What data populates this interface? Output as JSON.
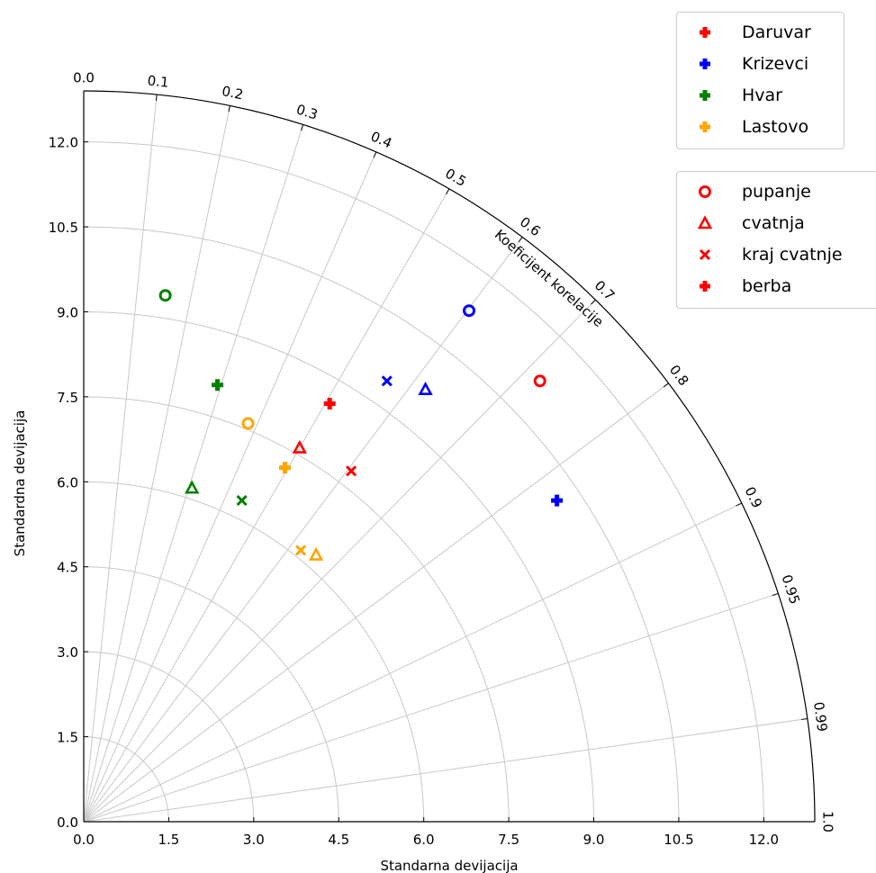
{
  "chart_data": {
    "type": "taylor_diagram",
    "xlabel": "Standarna devijacija",
    "ylabel": "Standardna devijacija",
    "arc_label": "Koeficijent korelacije",
    "std_max": 12.9,
    "std_ticks": [
      "0.0",
      "1.5",
      "3.0",
      "4.5",
      "6.0",
      "7.5",
      "9.0",
      "10.5",
      "12.0"
    ],
    "corr_ticks": [
      "0.0",
      "0.1",
      "0.2",
      "0.3",
      "0.4",
      "0.5",
      "0.6",
      "0.7",
      "0.8",
      "0.9",
      "0.95",
      "0.99",
      "1.0"
    ],
    "grid": true,
    "stations": [
      {
        "name": "Daruvar",
        "color": "#ff0000"
      },
      {
        "name": "Krizevci",
        "color": "#0000ff"
      },
      {
        "name": "Hvar",
        "color": "#008000"
      },
      {
        "name": "Lastovo",
        "color": "#ffa500"
      }
    ],
    "phases": [
      {
        "name": "pupanje",
        "marker": "circle"
      },
      {
        "name": "cvatnja",
        "marker": "triangle"
      },
      {
        "name": "kraj cvatnje",
        "marker": "x"
      },
      {
        "name": "berba",
        "marker": "plus"
      }
    ],
    "points": [
      {
        "station": "Daruvar",
        "phase": "pupanje",
        "x": 8.05,
        "y": 7.78
      },
      {
        "station": "Daruvar",
        "phase": "cvatnja",
        "x": 3.81,
        "y": 6.6
      },
      {
        "station": "Daruvar",
        "phase": "kraj cvatnje",
        "x": 4.72,
        "y": 6.19
      },
      {
        "station": "Daruvar",
        "phase": "berba",
        "x": 4.34,
        "y": 7.38
      },
      {
        "station": "Krizevci",
        "phase": "pupanje",
        "x": 6.8,
        "y": 9.02
      },
      {
        "station": "Krizevci",
        "phase": "cvatnja",
        "x": 6.03,
        "y": 7.63
      },
      {
        "station": "Krizevci",
        "phase": "kraj cvatnje",
        "x": 5.35,
        "y": 7.78
      },
      {
        "station": "Krizevci",
        "phase": "berba",
        "x": 8.35,
        "y": 5.67
      },
      {
        "station": "Hvar",
        "phase": "pupanje",
        "x": 1.44,
        "y": 9.29
      },
      {
        "station": "Hvar",
        "phase": "cvatnja",
        "x": 1.91,
        "y": 5.89
      },
      {
        "station": "Hvar",
        "phase": "kraj cvatnje",
        "x": 2.79,
        "y": 5.67
      },
      {
        "station": "Hvar",
        "phase": "berba",
        "x": 2.36,
        "y": 7.71
      },
      {
        "station": "Lastovo",
        "phase": "pupanje",
        "x": 2.9,
        "y": 7.03
      },
      {
        "station": "Lastovo",
        "phase": "cvatnja",
        "x": 4.1,
        "y": 4.71
      },
      {
        "station": "Lastovo",
        "phase": "kraj cvatnje",
        "x": 3.83,
        "y": 4.79
      },
      {
        "station": "Lastovo",
        "phase": "berba",
        "x": 3.55,
        "y": 6.25
      }
    ],
    "legend_phase_color": "#ff0000",
    "legend_placement": "top-right"
  }
}
